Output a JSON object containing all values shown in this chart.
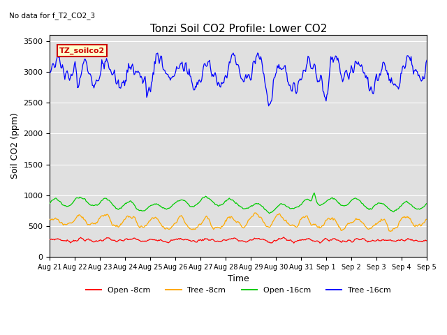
{
  "title": "Tonzi Soil CO2 Profile: Lower CO2",
  "subtitle": "No data for f_T2_CO2_3",
  "ylabel": "Soil CO2 (ppm)",
  "xlabel": "Time",
  "ylim": [
    0,
    3600
  ],
  "yticks": [
    0,
    500,
    1000,
    1500,
    2000,
    2500,
    3000,
    3500
  ],
  "xtick_labels": [
    "Aug 21",
    "Aug 22",
    "Aug 23",
    "Aug 24",
    "Aug 25",
    "Aug 26",
    "Aug 27",
    "Aug 28",
    "Aug 29",
    "Aug 30",
    "Aug 31",
    "Sep 1",
    "Sep 2",
    "Sep 3",
    "Sep 4",
    "Sep 5"
  ],
  "legend_labels": [
    "Open -8cm",
    "Tree -8cm",
    "Open -16cm",
    "Tree -16cm"
  ],
  "legend_colors": [
    "#ff0000",
    "#ffaa00",
    "#00cc00",
    "#0000ff"
  ],
  "plot_bg_color": "#e0e0e0",
  "fig_bg_color": "#ffffff",
  "legend_box_facecolor": "#ffffcc",
  "legend_box_edgecolor": "#cc0000",
  "legend_text_color": "#cc0000",
  "legend_text": "TZ_soilco2",
  "n_points": 480,
  "subtitle_color": "#444444",
  "grid_color": "#ffffff",
  "title_fontsize": 11,
  "tick_fontsize": 7,
  "ylabel_fontsize": 9,
  "xlabel_fontsize": 9
}
